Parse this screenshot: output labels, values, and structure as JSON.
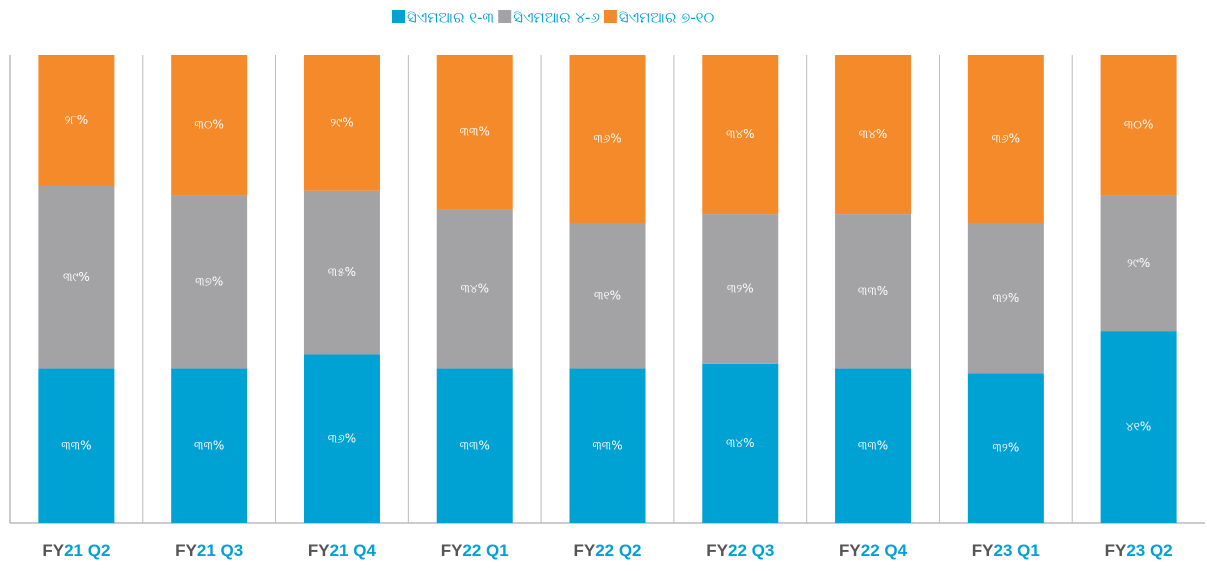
{
  "chart_data": {
    "type": "stacked_bar",
    "categories": [
      "FY21 Q2",
      "FY21 Q3",
      "FY21 Q4",
      "FY22 Q1",
      "FY22 Q2",
      "FY22 Q3",
      "FY22 Q4",
      "FY23 Q1",
      "FY23 Q2"
    ],
    "series": [
      {
        "name": "ସିଏମଆର ୧-୩",
        "color": "#00a1d3",
        "values": [
          33,
          33,
          36,
          33,
          33,
          34,
          33,
          32,
          41
        ],
        "value_labels": [
          "୩୩%",
          "୩୩%",
          "୩୬%",
          "୩୩%",
          "୩୩%",
          "୩୪%",
          "୩୩%",
          "୩୨%",
          "୪୧%"
        ]
      },
      {
        "name": "ସିଏମଆର ୪-୬",
        "color": "#a3a3a6",
        "values": [
          39,
          37,
          35,
          34,
          31,
          32,
          33,
          32,
          29
        ],
        "value_labels": [
          "୩୯%",
          "୩୭%",
          "୩୫%",
          "୩୪%",
          "୩୧%",
          "୩୨%",
          "୩୩%",
          "୩୨%",
          "୨୯%"
        ]
      },
      {
        "name": "ସିଏମଆର ୭-୧୦",
        "color": "#f58a2b",
        "values": [
          28,
          30,
          29,
          33,
          36,
          34,
          34,
          36,
          30
        ],
        "value_labels": [
          "୨୮%",
          "୩୦%",
          "୨୯%",
          "୩୩%",
          "୩୬%",
          "୩୪%",
          "୩୪%",
          "୩୬%",
          "୩୦%"
        ]
      }
    ],
    "ylim": [
      0,
      100
    ],
    "legend": "top"
  }
}
